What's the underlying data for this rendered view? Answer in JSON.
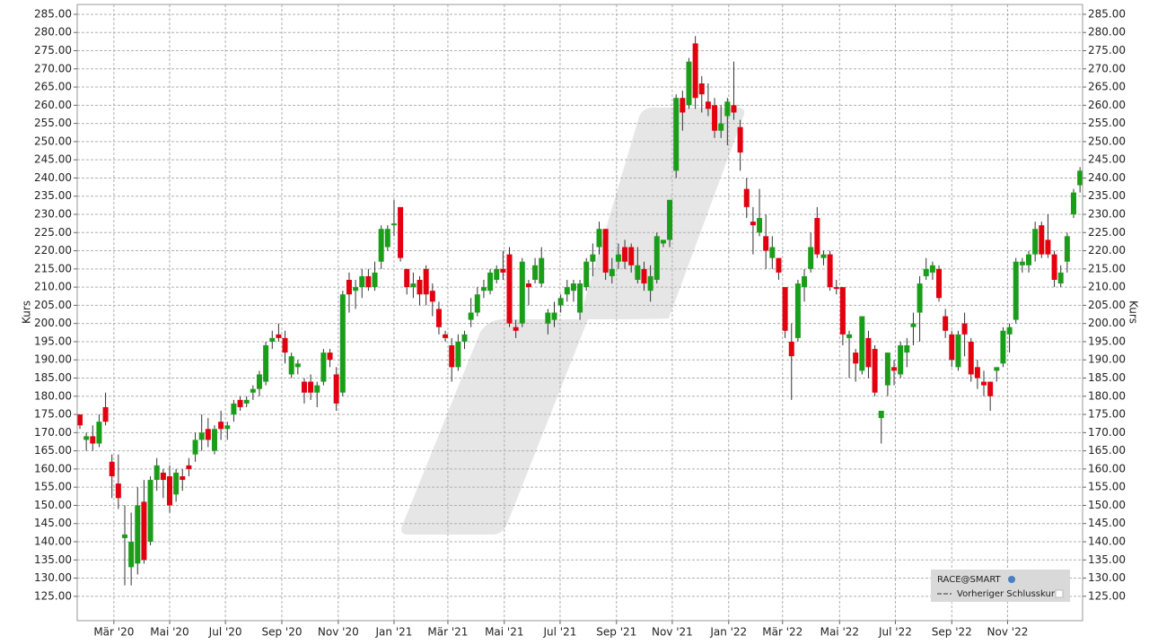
{
  "chart_data": {
    "type": "candlestick",
    "ylabel": "Kurs",
    "y2label": "Kurs",
    "up_color": "#1a9e1a",
    "down_color": "#e3000f",
    "wick_color": "#333333",
    "grid": true,
    "legend_corner": "bottom-right",
    "legend_extra": "Vorheriger Schlusskurs",
    "series": [
      {
        "name": "RACE@SMART",
        "open": [
          175,
          168,
          169,
          167,
          177,
          162,
          156,
          141,
          133,
          134,
          151,
          140,
          157,
          159,
          158,
          153,
          158,
          161,
          164,
          168,
          171,
          165,
          173,
          171,
          175,
          179,
          178,
          181,
          182,
          184,
          195,
          197,
          196,
          186,
          188,
          184,
          184,
          181,
          184,
          192,
          186,
          181,
          212,
          209,
          210,
          213,
          210,
          217,
          221,
          227,
          232,
          215,
          210,
          212,
          215,
          209,
          204,
          197,
          194,
          188,
          195,
          201,
          203,
          209,
          209,
          212,
          215,
          219,
          199,
          200,
          211,
          212,
          211,
          200,
          201,
          205,
          208,
          209,
          203,
          210,
          217,
          221,
          226,
          213,
          217,
          221,
          221,
          212,
          215,
          209,
          212,
          222,
          223,
          242,
          262,
          260,
          277,
          266,
          261,
          260,
          253,
          257,
          260,
          254,
          237,
          228,
          225,
          224,
          218,
          218,
          210,
          195,
          196,
          210,
          215,
          229,
          218,
          219,
          210,
          210,
          196,
          192,
          187,
          196,
          193,
          174,
          183,
          188,
          186,
          192,
          199,
          203,
          213,
          214,
          215,
          202,
          197,
          188,
          200,
          195,
          188,
          184,
          184,
          187,
          189,
          197,
          201,
          216,
          216,
          219,
          227,
          223,
          219,
          211,
          217,
          230,
          238
        ],
        "high": [
          175,
          170,
          172,
          175,
          181,
          164,
          164,
          150,
          148,
          155,
          157,
          158,
          163,
          160,
          161,
          160,
          160,
          163,
          170,
          175,
          174,
          172,
          176,
          173,
          179,
          180,
          180,
          183,
          187,
          195,
          198,
          200,
          198,
          192,
          190,
          185,
          186,
          184,
          193,
          193,
          188,
          209,
          214,
          212,
          215,
          215,
          217,
          227,
          227,
          234,
          232,
          215,
          214,
          213,
          216,
          211,
          206,
          198,
          196,
          197,
          198,
          207,
          210,
          212,
          215,
          216,
          220,
          221,
          201,
          218,
          212,
          218,
          221,
          204,
          206,
          208,
          212,
          212,
          212,
          218,
          222,
          228,
          226,
          218,
          222,
          223,
          222,
          221,
          217,
          216,
          225,
          223,
          234,
          263,
          264,
          273,
          279,
          268,
          266,
          262,
          260,
          262,
          272,
          256,
          240,
          232,
          237,
          230,
          224,
          218,
          210,
          200,
          212,
          215,
          225,
          232,
          220,
          220,
          212,
          210,
          198,
          193,
          202,
          198,
          194,
          176,
          192,
          190,
          195,
          196,
          203,
          213,
          218,
          217,
          216,
          204,
          198,
          198,
          203,
          196,
          190,
          187,
          184,
          188,
          199,
          200,
          218,
          218,
          220,
          228,
          228,
          230,
          220,
          216,
          225,
          237,
          243
        ],
        "low": [
          171,
          165,
          165,
          166,
          172,
          152,
          149,
          128,
          128,
          131,
          134,
          139,
          154,
          152,
          148,
          151,
          154,
          158,
          162,
          165,
          166,
          164,
          168,
          168,
          173,
          176,
          177,
          179,
          180,
          183,
          193,
          195,
          189,
          185,
          186,
          178,
          179,
          177,
          183,
          188,
          176,
          180,
          203,
          204,
          207,
          209,
          209,
          215,
          220,
          224,
          217,
          208,
          207,
          205,
          205,
          202,
          197,
          195,
          184,
          187,
          193,
          199,
          202,
          207,
          208,
          211,
          212,
          199,
          196,
          199,
          205,
          211,
          210,
          197,
          199,
          203,
          206,
          206,
          201,
          209,
          213,
          219,
          212,
          211,
          215,
          215,
          214,
          211,
          209,
          206,
          211,
          221,
          221,
          240,
          253,
          259,
          259,
          258,
          257,
          251,
          251,
          249,
          256,
          242,
          229,
          219,
          224,
          215,
          215,
          212,
          196,
          179,
          195,
          206,
          214,
          218,
          216,
          209,
          208,
          194,
          185,
          184,
          186,
          185,
          180,
          167,
          180,
          183,
          185,
          188,
          194,
          195,
          212,
          212,
          206,
          196,
          188,
          187,
          191,
          184,
          182,
          180,
          176,
          184,
          188,
          192,
          200,
          214,
          214,
          217,
          218,
          218,
          210,
          210,
          214,
          229,
          236
        ],
        "close": [
          172,
          169,
          167,
          173,
          173,
          158,
          152,
          142,
          140,
          150,
          135,
          157,
          161,
          157,
          150,
          159,
          157,
          160,
          168,
          170,
          168,
          171,
          171,
          172,
          178,
          177,
          179,
          182,
          186,
          194,
          196,
          196,
          192,
          191,
          189,
          181,
          181,
          183,
          192,
          190,
          178,
          208,
          208,
          210,
          213,
          210,
          214,
          226,
          226,
          227.5,
          218,
          210,
          211,
          208,
          208,
          206,
          199,
          196,
          188,
          195,
          197,
          203,
          208,
          210,
          214,
          215,
          214,
          200,
          198,
          217,
          210,
          216,
          218,
          203,
          203,
          207,
          210,
          211,
          211,
          217,
          219,
          226,
          214,
          215,
          219,
          217,
          216,
          216,
          211,
          213,
          224,
          223,
          234,
          262,
          258,
          272,
          262,
          263,
          259,
          253,
          255,
          261,
          258,
          247,
          232,
          227,
          229,
          220,
          221,
          214,
          198,
          191,
          211,
          213,
          221,
          219,
          219,
          210,
          209.5,
          197,
          197,
          189,
          202,
          188,
          181,
          176,
          192,
          187,
          194,
          194,
          200,
          211,
          215,
          216,
          207,
          198,
          190,
          197,
          197,
          186,
          185,
          183,
          180,
          188,
          198,
          199,
          217,
          217,
          219,
          226,
          219,
          219,
          212,
          214,
          224,
          236,
          242
        ]
      }
    ],
    "xlim": [
      -0.42,
      156.4
    ],
    "xticks": [
      {
        "value": 5.3,
        "label": "Mär '20"
      },
      {
        "value": 14.0,
        "label": "Mai '20"
      },
      {
        "value": 22.7,
        "label": "Jul '20"
      },
      {
        "value": 31.5,
        "label": "Sep '20"
      },
      {
        "value": 40.3,
        "label": "Nov '20"
      },
      {
        "value": 49.0,
        "label": "Jan '21"
      },
      {
        "value": 57.4,
        "label": "Mär '21"
      },
      {
        "value": 66.2,
        "label": "Mai '21"
      },
      {
        "value": 74.9,
        "label": "Jul '21"
      },
      {
        "value": 83.7,
        "label": "Sep '21"
      },
      {
        "value": 92.4,
        "label": "Nov '21"
      },
      {
        "value": 101.2,
        "label": "Jan '22"
      },
      {
        "value": 109.6,
        "label": "Mär '22"
      },
      {
        "value": 118.5,
        "label": "Mai '22"
      },
      {
        "value": 127.2,
        "label": "Jul '22"
      },
      {
        "value": 136.0,
        "label": "Sep '22"
      },
      {
        "value": 144.7,
        "label": "Nov '22"
      }
    ],
    "ylim": [
      118.3,
      287.7
    ],
    "yticks": [
      {
        "value": 125,
        "label": "125.00"
      },
      {
        "value": 130,
        "label": "130.00"
      },
      {
        "value": 135,
        "label": "135.00"
      },
      {
        "value": 140,
        "label": "140.00"
      },
      {
        "value": 145,
        "label": "145.00"
      },
      {
        "value": 150,
        "label": "150.00"
      },
      {
        "value": 155,
        "label": "155.00"
      },
      {
        "value": 160,
        "label": "160.00"
      },
      {
        "value": 165,
        "label": "165.00"
      },
      {
        "value": 170,
        "label": "170.00"
      },
      {
        "value": 175,
        "label": "175.00"
      },
      {
        "value": 180,
        "label": "180.00"
      },
      {
        "value": 185,
        "label": "185.00"
      },
      {
        "value": 190,
        "label": "190.00"
      },
      {
        "value": 195,
        "label": "195.00"
      },
      {
        "value": 200,
        "label": "200.00"
      },
      {
        "value": 205,
        "label": "205.00"
      },
      {
        "value": 210,
        "label": "210.00"
      },
      {
        "value": 215,
        "label": "215.00"
      },
      {
        "value": 220,
        "label": "220.00"
      },
      {
        "value": 225,
        "label": "225.00"
      },
      {
        "value": 230,
        "label": "230.00"
      },
      {
        "value": 235,
        "label": "235.00"
      },
      {
        "value": 240,
        "label": "240.00"
      },
      {
        "value": 245,
        "label": "245.00"
      },
      {
        "value": 250,
        "label": "250.00"
      },
      {
        "value": 255,
        "label": "255.00"
      },
      {
        "value": 260,
        "label": "260.00"
      },
      {
        "value": 265,
        "label": "265.00"
      },
      {
        "value": 270,
        "label": "270.00"
      },
      {
        "value": 275,
        "label": "275.00"
      },
      {
        "value": 280,
        "label": "280.00"
      },
      {
        "value": 285,
        "label": "285.00"
      }
    ]
  }
}
